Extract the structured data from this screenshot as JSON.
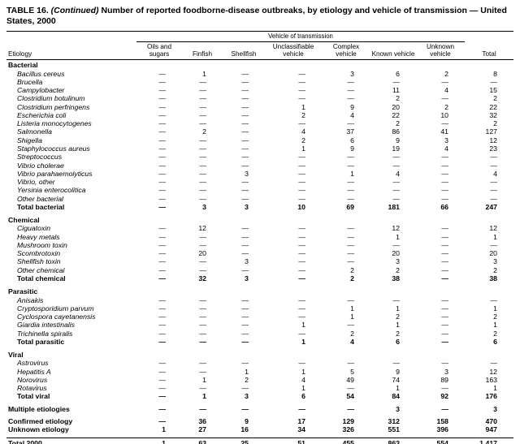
{
  "header": {
    "title_prefix": "TABLE 16.",
    "title_continued": "(Continued)",
    "title_rest": "Number of reported foodborne-disease outbreaks, by etiology and vehicle of transmission — United States, 2000"
  },
  "table": {
    "group_header": "Vehicle of transmission",
    "row_header": "Etiology",
    "columns": [
      "Oils and sugars",
      "Finfish",
      "Shellfish",
      "Unclassifiable vehicle",
      "Complex vehicle",
      "Known vehicle",
      "Unknown vehicle",
      "Total"
    ],
    "empty_marker": "—",
    "rows": [
      {
        "type": "section",
        "label": "Bacterial"
      },
      {
        "type": "item",
        "italic": true,
        "label": "Bacillus cereus",
        "values": [
          "—",
          "1",
          "—",
          "—",
          "3",
          "6",
          "2",
          "8"
        ]
      },
      {
        "type": "item",
        "italic": true,
        "label": "Brucella",
        "values": [
          "—",
          "—",
          "—",
          "—",
          "—",
          "—",
          "—",
          "—"
        ]
      },
      {
        "type": "item",
        "italic": true,
        "label": "Campylobacter",
        "values": [
          "—",
          "—",
          "—",
          "—",
          "—",
          "11",
          "4",
          "15"
        ]
      },
      {
        "type": "item",
        "italic": true,
        "label": "Clostridium botulinum",
        "values": [
          "—",
          "—",
          "—",
          "—",
          "—",
          "2",
          "—",
          "2"
        ]
      },
      {
        "type": "item",
        "italic": true,
        "label": "Clostridium perfringens",
        "values": [
          "—",
          "—",
          "—",
          "1",
          "9",
          "20",
          "2",
          "22"
        ]
      },
      {
        "type": "item",
        "italic": true,
        "label": "Escherichia coli",
        "values": [
          "—",
          "—",
          "—",
          "2",
          "4",
          "22",
          "10",
          "32"
        ]
      },
      {
        "type": "item",
        "italic": true,
        "label": "Listeria monocytogenes",
        "values": [
          "—",
          "—",
          "—",
          "—",
          "—",
          "2",
          "—",
          "2"
        ]
      },
      {
        "type": "item",
        "italic": true,
        "label": "Salmonella",
        "values": [
          "—",
          "2",
          "—",
          "4",
          "37",
          "86",
          "41",
          "127"
        ]
      },
      {
        "type": "item",
        "italic": true,
        "label": "Shigella",
        "values": [
          "—",
          "—",
          "—",
          "2",
          "6",
          "9",
          "3",
          "12"
        ]
      },
      {
        "type": "item",
        "italic": true,
        "label": "Staphylococcus aureus",
        "values": [
          "—",
          "—",
          "—",
          "1",
          "9",
          "19",
          "4",
          "23"
        ]
      },
      {
        "type": "item",
        "italic": true,
        "label": "Streptococcus",
        "values": [
          "—",
          "—",
          "—",
          "—",
          "—",
          "—",
          "—",
          "—"
        ]
      },
      {
        "type": "item",
        "italic": true,
        "label": "Vibrio cholerae",
        "values": [
          "—",
          "—",
          "—",
          "—",
          "—",
          "—",
          "—",
          "—"
        ]
      },
      {
        "type": "item",
        "italic": true,
        "label": "Vibrio parahaemolyticus",
        "values": [
          "—",
          "—",
          "3",
          "—",
          "1",
          "4",
          "—",
          "4"
        ]
      },
      {
        "type": "item",
        "italic": true,
        "label": "Vibrio, other",
        "values": [
          "—",
          "—",
          "—",
          "—",
          "—",
          "—",
          "—",
          "—"
        ]
      },
      {
        "type": "item",
        "italic": true,
        "label": "Yersinia enterocolitica",
        "values": [
          "—",
          "—",
          "—",
          "—",
          "—",
          "—",
          "—",
          "—"
        ]
      },
      {
        "type": "item",
        "italic": true,
        "label": "Other bacterial",
        "values": [
          "—",
          "—",
          "—",
          "—",
          "—",
          "—",
          "—",
          "—"
        ]
      },
      {
        "type": "total",
        "label": "Total bacterial",
        "values": [
          "—",
          "3",
          "3",
          "10",
          "69",
          "181",
          "66",
          "247"
        ]
      },
      {
        "type": "spacer"
      },
      {
        "type": "section",
        "label": "Chemical"
      },
      {
        "type": "item",
        "italic": true,
        "label": "Ciguatoxin",
        "values": [
          "—",
          "12",
          "—",
          "—",
          "—",
          "12",
          "—",
          "12"
        ]
      },
      {
        "type": "item",
        "italic": true,
        "label": "Heavy metals",
        "values": [
          "—",
          "—",
          "—",
          "—",
          "—",
          "1",
          "—",
          "1"
        ]
      },
      {
        "type": "item",
        "italic": true,
        "label": "Mushroom toxin",
        "values": [
          "—",
          "—",
          "—",
          "—",
          "—",
          "—",
          "—",
          "—"
        ]
      },
      {
        "type": "item",
        "italic": true,
        "label": "Scombrotoxin",
        "values": [
          "—",
          "20",
          "—",
          "—",
          "—",
          "20",
          "—",
          "20"
        ]
      },
      {
        "type": "item",
        "italic": true,
        "label": "Shellfish toxin",
        "values": [
          "—",
          "—",
          "3",
          "—",
          "—",
          "3",
          "—",
          "3"
        ]
      },
      {
        "type": "item",
        "italic": true,
        "label": "Other chemical",
        "values": [
          "—",
          "—",
          "—",
          "—",
          "2",
          "2",
          "—",
          "2"
        ]
      },
      {
        "type": "total",
        "label": "Total chemical",
        "values": [
          "—",
          "32",
          "3",
          "—",
          "2",
          "38",
          "—",
          "38"
        ]
      },
      {
        "type": "spacer"
      },
      {
        "type": "section",
        "label": "Parasitic"
      },
      {
        "type": "item",
        "italic": true,
        "label": "Anisakis",
        "values": [
          "—",
          "—",
          "—",
          "—",
          "—",
          "—",
          "—",
          "—"
        ]
      },
      {
        "type": "item",
        "italic": true,
        "label": "Cryptosporidium parvum",
        "values": [
          "—",
          "—",
          "—",
          "—",
          "1",
          "1",
          "—",
          "1"
        ]
      },
      {
        "type": "item",
        "italic": true,
        "label": "Cyclospora cayetanensis",
        "values": [
          "—",
          "—",
          "—",
          "—",
          "1",
          "2",
          "—",
          "2"
        ]
      },
      {
        "type": "item",
        "italic": true,
        "label": "Giardia intestinalis",
        "values": [
          "—",
          "—",
          "—",
          "1",
          "—",
          "1",
          "—",
          "1"
        ]
      },
      {
        "type": "item",
        "italic": true,
        "label": "Trichinella spiralis",
        "values": [
          "—",
          "—",
          "—",
          "—",
          "2",
          "2",
          "—",
          "2"
        ]
      },
      {
        "type": "total",
        "label": "Total parasitic",
        "values": [
          "—",
          "—",
          "—",
          "1",
          "4",
          "6",
          "—",
          "6"
        ]
      },
      {
        "type": "spacer"
      },
      {
        "type": "section",
        "label": "Viral"
      },
      {
        "type": "item",
        "italic": true,
        "label": "Astrovirus",
        "values": [
          "—",
          "—",
          "—",
          "—",
          "—",
          "—",
          "—",
          "—"
        ]
      },
      {
        "type": "item",
        "italic": true,
        "label": "Hepatitis A",
        "values": [
          "—",
          "—",
          "1",
          "1",
          "5",
          "9",
          "3",
          "12"
        ]
      },
      {
        "type": "item",
        "italic": true,
        "label": "Norovirus",
        "values": [
          "—",
          "1",
          "2",
          "4",
          "49",
          "74",
          "89",
          "163"
        ]
      },
      {
        "type": "item",
        "italic": true,
        "label": "Rotavirus",
        "values": [
          "—",
          "—",
          "—",
          "1",
          "—",
          "1",
          "—",
          "1"
        ]
      },
      {
        "type": "total",
        "label": "Total viral",
        "values": [
          "—",
          "1",
          "3",
          "6",
          "54",
          "84",
          "92",
          "176"
        ]
      },
      {
        "type": "spacer"
      },
      {
        "type": "summary",
        "label": "Multiple etiologies",
        "values": [
          "—",
          "—",
          "—",
          "—",
          "—",
          "3",
          "—",
          "3"
        ]
      },
      {
        "type": "spacer"
      },
      {
        "type": "summary",
        "label": "Confirmed etiology",
        "values": [
          "—",
          "36",
          "9",
          "17",
          "129",
          "312",
          "158",
          "470"
        ]
      },
      {
        "type": "summary",
        "label": "Unknown etiology",
        "values": [
          "1",
          "27",
          "16",
          "34",
          "326",
          "551",
          "396",
          "947"
        ]
      },
      {
        "type": "spacer"
      },
      {
        "type": "grandtotal",
        "label": "Total 2000",
        "values": [
          "1",
          "63",
          "25",
          "51",
          "455",
          "863",
          "554",
          "1,417"
        ]
      }
    ]
  }
}
